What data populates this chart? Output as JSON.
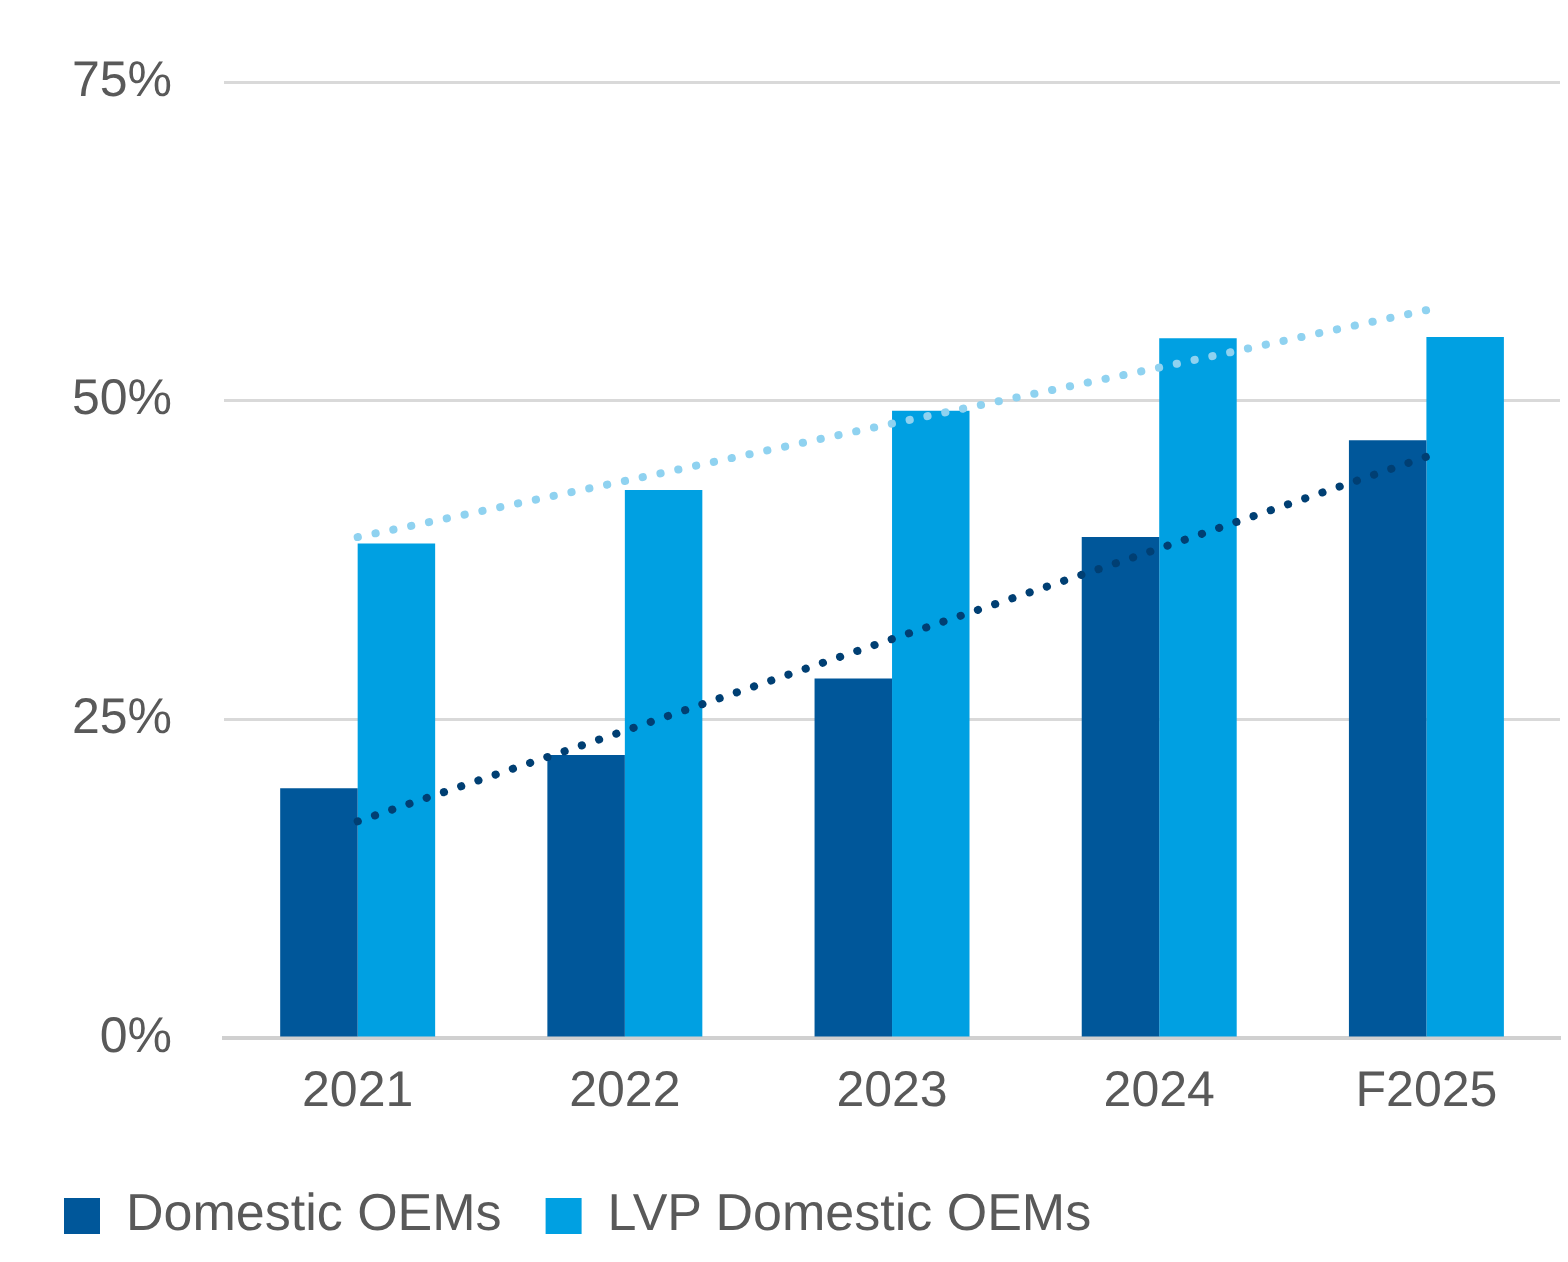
{
  "chart_data": {
    "type": "bar",
    "categories": [
      "2021",
      "2022",
      "2023",
      "2024",
      "F2025"
    ],
    "series": [
      {
        "name": "Domestic OEMs",
        "color": "#00579a",
        "values": [
          19.6,
          22.2,
          28.2,
          39.3,
          46.9
        ]
      },
      {
        "name": "LVP Domestic OEMs",
        "color": "#00a0e2",
        "values": [
          38.8,
          43.0,
          49.2,
          54.9,
          55.0
        ]
      },
      {
        "type": "line",
        "color": "#003f73",
        "line_style": "dotted",
        "marker": "none",
        "values": [
          17.0,
          24.1,
          31.3,
          38.4,
          45.6
        ]
      },
      {
        "type": "line",
        "color": "#8fd2f0",
        "line_style": "dotted",
        "marker": "none",
        "values": [
          39.3,
          43.7,
          48.2,
          52.6,
          57.1
        ]
      }
    ],
    "ylim": [
      0,
      75
    ],
    "yticks": [
      {
        "value": 0,
        "label": "0%"
      },
      {
        "value": 25,
        "label": "25%"
      },
      {
        "value": 50,
        "label": "50%"
      },
      {
        "value": 75,
        "label": "75%"
      }
    ],
    "grid": "y",
    "legend": "bottom"
  }
}
